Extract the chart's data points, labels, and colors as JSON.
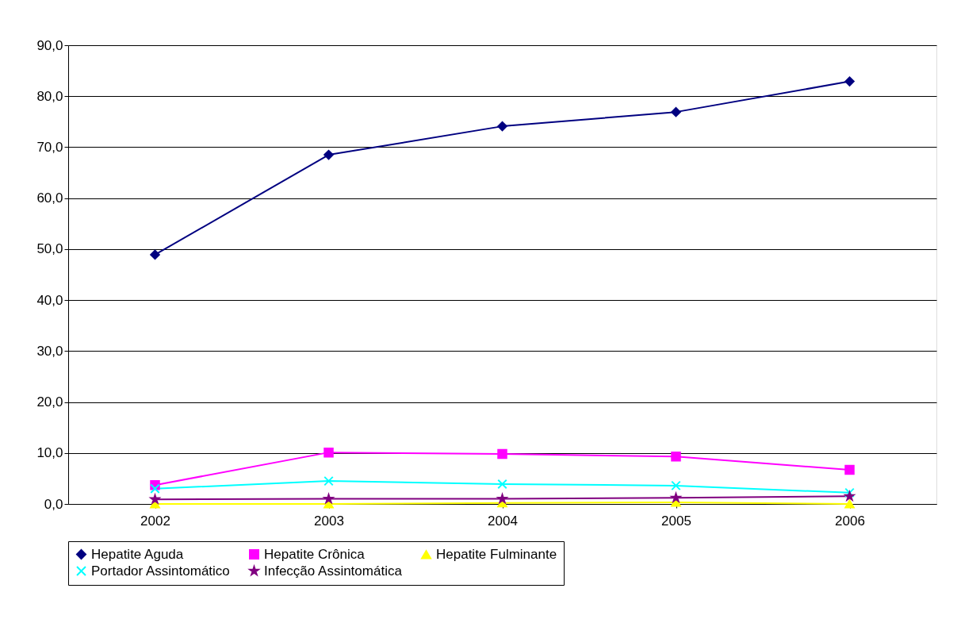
{
  "chart_data": {
    "type": "line",
    "categories": [
      "2002",
      "2003",
      "2004",
      "2005",
      "2006"
    ],
    "series": [
      {
        "name": "Hepatite Aguda",
        "color": "#000080",
        "marker": "diamond",
        "values": [
          48.9,
          68.5,
          74.1,
          76.9,
          82.9
        ]
      },
      {
        "name": "Hepatite Crônica",
        "color": "#ff00ff",
        "marker": "square",
        "values": [
          3.7,
          10.1,
          9.8,
          9.3,
          6.7
        ]
      },
      {
        "name": "Hepatite Fulminante",
        "color": "#ffff00",
        "marker": "triangle",
        "values": [
          0.0,
          0.0,
          0.2,
          0.3,
          0.0
        ]
      },
      {
        "name": "Portador Assintomático",
        "color": "#00ffff",
        "marker": "cross",
        "values": [
          3.0,
          4.5,
          3.9,
          3.6,
          2.2
        ]
      },
      {
        "name": "Infecção Assintomática",
        "color": "#800080",
        "marker": "star",
        "values": [
          0.9,
          1.0,
          1.0,
          1.2,
          1.5
        ]
      }
    ],
    "ylim": [
      0,
      90
    ],
    "yticks": [
      {
        "value": 0,
        "label": "0,0"
      },
      {
        "value": 10,
        "label": "10,0"
      },
      {
        "value": 20,
        "label": "20,0"
      },
      {
        "value": 30,
        "label": "30,0"
      },
      {
        "value": 40,
        "label": "40,0"
      },
      {
        "value": 50,
        "label": "50,0"
      },
      {
        "value": 60,
        "label": "60,0"
      },
      {
        "value": 70,
        "label": "70,0"
      },
      {
        "value": 80,
        "label": "80,0"
      },
      {
        "value": 90,
        "label": "90,0"
      }
    ],
    "grid": "y",
    "legend": "bottom",
    "line_style": "solid"
  }
}
